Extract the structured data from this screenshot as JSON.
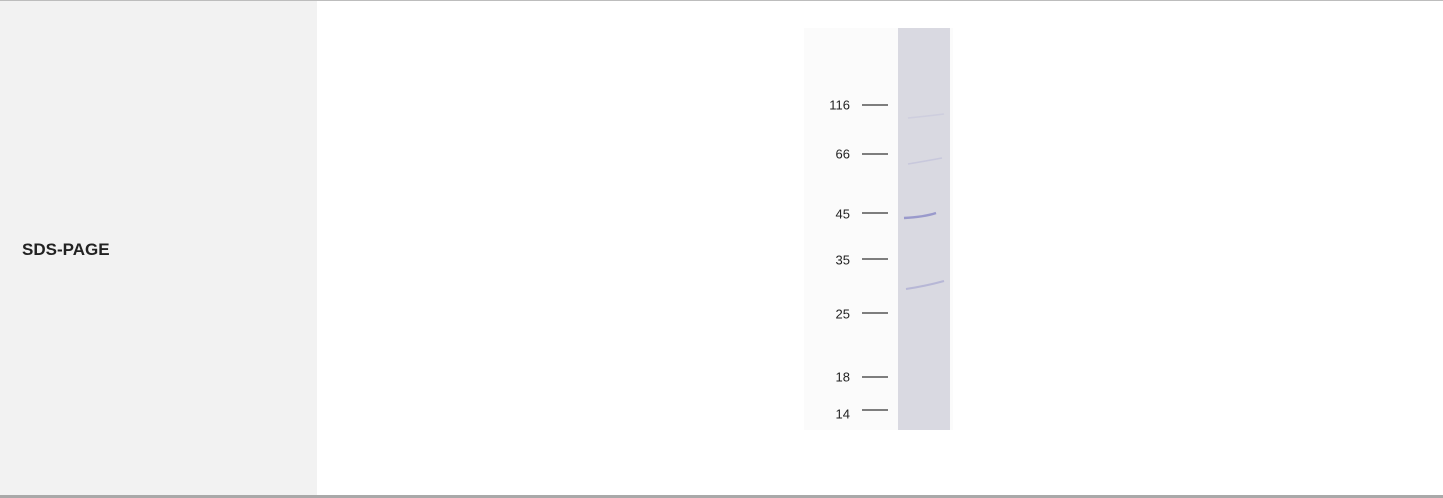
{
  "row": {
    "label": "SDS-PAGE"
  },
  "gel": {
    "markers": [
      "116",
      "66",
      "45",
      "35",
      "25",
      "18",
      "14"
    ]
  }
}
